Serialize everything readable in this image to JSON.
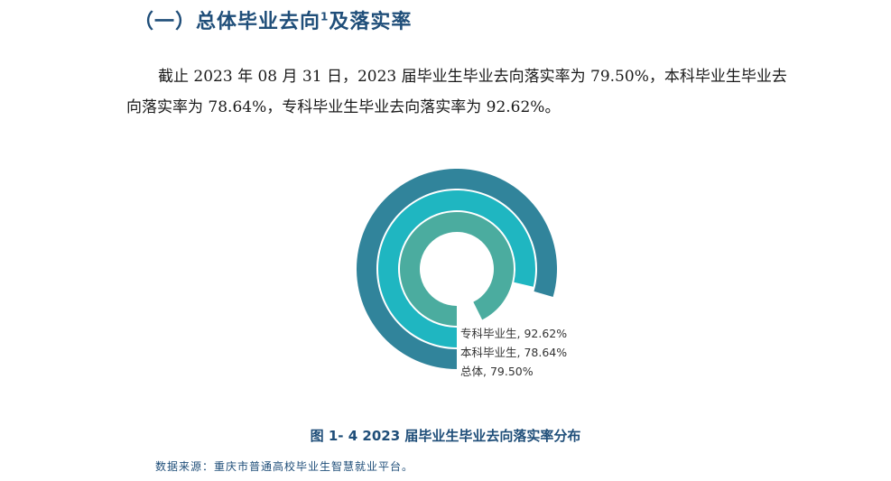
{
  "section": {
    "heading": "（一）总体毕业去向",
    "footnote_mark": "1",
    "heading_suffix": "及落实率"
  },
  "paragraph": "截止 2023 年 08 月 31 日，2023 届毕业生毕业去向落实率为 79.50%，本科毕业生毕业去向落实率为 78.64%，专科毕业生毕业去向落实率为 92.62%。",
  "chart_data": {
    "type": "radial-bar",
    "title": "",
    "series": [
      {
        "name": "总体",
        "value": 79.5,
        "label": "总体, 79.50%",
        "color": "#31849b"
      },
      {
        "name": "本科毕业生",
        "value": 78.64,
        "label": "本科毕业生, 78.64%",
        "color": "#1fb6c1"
      },
      {
        "name": "专科毕业生",
        "value": 92.62,
        "label": "专科毕业生, 92.62%",
        "color": "#4bac9f"
      }
    ],
    "max": 100
  },
  "figure": {
    "caption": "图 1- 4  2023 届毕业生毕业去向落实率分布"
  },
  "source": "数据来源：重庆市普通高校毕业生智慧就业平台。"
}
